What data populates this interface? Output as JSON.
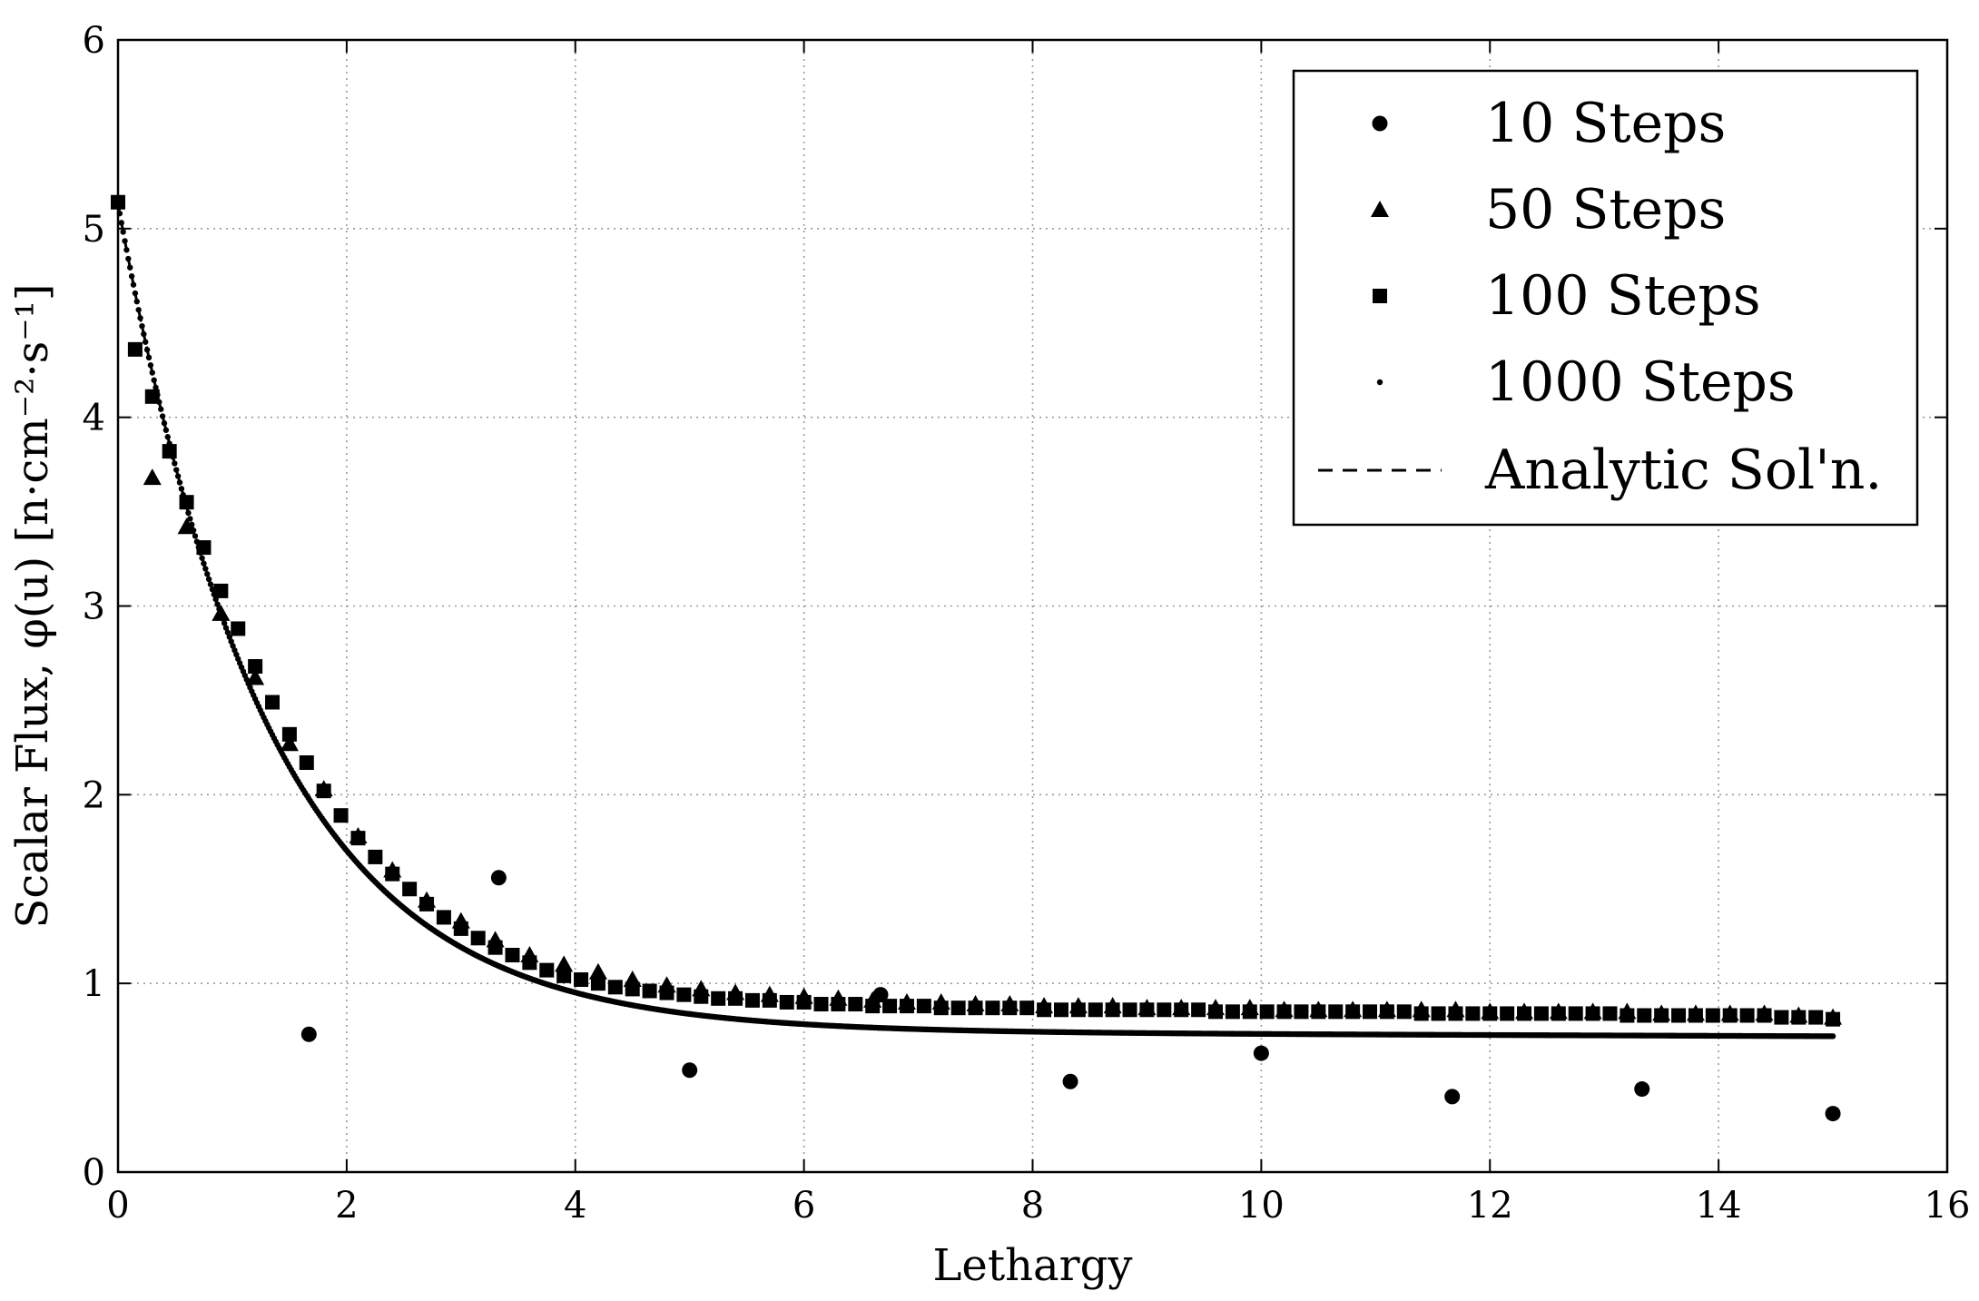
{
  "chart_data": {
    "type": "scatter",
    "title": "",
    "xlabel": "Lethargy",
    "ylabel": "Scalar Flux, φ(u) [n·cm⁻²·s⁻¹]",
    "xlim": [
      0,
      16
    ],
    "ylim": [
      0,
      6
    ],
    "xticks": [
      "0",
      "2",
      "4",
      "6",
      "8",
      "10",
      "12",
      "14",
      "16"
    ],
    "yticks": [
      "0",
      "1",
      "2",
      "3",
      "4",
      "5",
      "6"
    ],
    "grid": true,
    "legend_position": "top-right",
    "colors": {
      "markers": "#000000",
      "grid": "#9a9a9a",
      "frame": "#000000"
    },
    "series": [
      {
        "name": "10 Steps",
        "marker": "circle",
        "x": [
          1.67,
          3.33,
          5.0,
          6.67,
          8.33,
          10.0,
          11.67,
          13.33,
          15.0
        ],
        "y": [
          0.73,
          1.56,
          0.54,
          0.94,
          0.48,
          0.63,
          0.4,
          0.44,
          0.31
        ]
      },
      {
        "name": "50 Steps",
        "marker": "triangle",
        "x": [
          0.3,
          0.6,
          0.9,
          1.2,
          1.5,
          1.8,
          2.1,
          2.4,
          2.7,
          3.0,
          3.3,
          3.6,
          3.9,
          4.2,
          4.5,
          4.8,
          5.1,
          5.4,
          5.7,
          6.0,
          6.3,
          6.6,
          6.9,
          7.2,
          7.5,
          7.8,
          8.1,
          8.4,
          8.7,
          9.0,
          9.3,
          9.6,
          9.9,
          10.2,
          10.5,
          10.8,
          11.1,
          11.4,
          11.7,
          12.0,
          12.3,
          12.6,
          12.9,
          13.2,
          13.5,
          13.8,
          14.1,
          14.4,
          14.7,
          15.0
        ],
        "y": [
          3.68,
          3.42,
          2.96,
          2.62,
          2.27,
          2.03,
          1.78,
          1.6,
          1.44,
          1.33,
          1.23,
          1.15,
          1.1,
          1.06,
          1.02,
          0.99,
          0.97,
          0.95,
          0.94,
          0.93,
          0.92,
          0.91,
          0.9,
          0.9,
          0.89,
          0.89,
          0.88,
          0.88,
          0.88,
          0.87,
          0.87,
          0.87,
          0.87,
          0.86,
          0.86,
          0.86,
          0.86,
          0.86,
          0.86,
          0.85,
          0.85,
          0.85,
          0.85,
          0.85,
          0.84,
          0.84,
          0.84,
          0.84,
          0.83,
          0.82
        ]
      },
      {
        "name": "100 Steps",
        "marker": "square",
        "x": [
          0.0,
          0.15,
          0.3,
          0.45,
          0.6,
          0.75,
          0.9,
          1.05,
          1.2,
          1.35,
          1.5,
          1.65,
          1.8,
          1.95,
          2.1,
          2.25,
          2.4,
          2.55,
          2.7,
          2.85,
          3.0,
          3.15,
          3.3,
          3.45,
          3.6,
          3.75,
          3.9,
          4.05,
          4.2,
          4.35,
          4.5,
          4.65,
          4.8,
          4.95,
          5.1,
          5.25,
          5.4,
          5.55,
          5.7,
          5.85,
          6.0,
          6.15,
          6.3,
          6.45,
          6.6,
          6.75,
          6.9,
          7.05,
          7.2,
          7.35,
          7.5,
          7.65,
          7.8,
          7.95,
          8.1,
          8.25,
          8.4,
          8.55,
          8.7,
          8.85,
          9.0,
          9.15,
          9.3,
          9.45,
          9.6,
          9.75,
          9.9,
          10.05,
          10.2,
          10.35,
          10.5,
          10.65,
          10.8,
          10.95,
          11.1,
          11.25,
          11.4,
          11.55,
          11.7,
          11.85,
          12.0,
          12.15,
          12.3,
          12.45,
          12.6,
          12.75,
          12.9,
          13.05,
          13.2,
          13.35,
          13.5,
          13.65,
          13.8,
          13.95,
          14.1,
          14.25,
          14.4,
          14.55,
          14.7,
          14.85,
          15.0
        ],
        "y": [
          5.14,
          4.36,
          4.11,
          3.82,
          3.55,
          3.31,
          3.08,
          2.88,
          2.68,
          2.49,
          2.32,
          2.17,
          2.02,
          1.89,
          1.77,
          1.67,
          1.58,
          1.5,
          1.42,
          1.35,
          1.29,
          1.24,
          1.19,
          1.15,
          1.11,
          1.07,
          1.04,
          1.02,
          1.0,
          0.98,
          0.97,
          0.96,
          0.95,
          0.94,
          0.93,
          0.92,
          0.92,
          0.91,
          0.91,
          0.9,
          0.9,
          0.89,
          0.89,
          0.89,
          0.88,
          0.88,
          0.88,
          0.88,
          0.87,
          0.87,
          0.87,
          0.87,
          0.87,
          0.87,
          0.86,
          0.86,
          0.86,
          0.86,
          0.86,
          0.86,
          0.86,
          0.86,
          0.86,
          0.86,
          0.85,
          0.85,
          0.85,
          0.85,
          0.85,
          0.85,
          0.85,
          0.85,
          0.85,
          0.85,
          0.85,
          0.85,
          0.84,
          0.84,
          0.84,
          0.84,
          0.84,
          0.84,
          0.84,
          0.84,
          0.84,
          0.84,
          0.84,
          0.84,
          0.83,
          0.83,
          0.83,
          0.83,
          0.83,
          0.83,
          0.83,
          0.83,
          0.83,
          0.82,
          0.82,
          0.82,
          0.81
        ]
      },
      {
        "name": "1000 Steps",
        "marker": "point",
        "curve": {
          "form": "a*exp(-b*x)+c",
          "a": 4.38,
          "b": 0.76,
          "c": 0.75,
          "tail_slope": -0.002,
          "x_start": 0,
          "x_end": 15,
          "step": 0.015
        }
      },
      {
        "name": "Analytic Sol'n.",
        "marker": "dashed-line",
        "curve": {
          "form": "a*exp(-b*x)+c",
          "a": 4.38,
          "b": 0.76,
          "c": 0.75,
          "tail_slope": -0.002,
          "x_start": 0,
          "x_end": 15,
          "step": 0.05
        }
      }
    ]
  }
}
